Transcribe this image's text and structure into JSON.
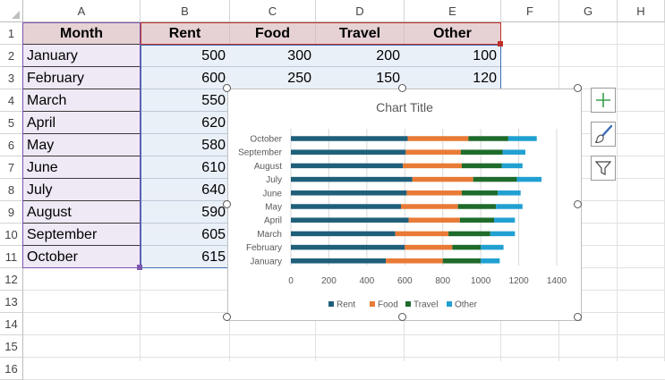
{
  "columns": [
    "A",
    "B",
    "C",
    "D",
    "E",
    "F",
    "G",
    "H"
  ],
  "rows": [
    "1",
    "2",
    "3",
    "4",
    "5",
    "6",
    "7",
    "8",
    "9",
    "10",
    "11",
    "12",
    "13",
    "14",
    "15",
    "16"
  ],
  "table": {
    "headers": [
      "Month",
      "Rent",
      "Food",
      "Travel",
      "Other"
    ],
    "months": [
      "January",
      "February",
      "March",
      "April",
      "May",
      "June",
      "July",
      "August",
      "September",
      "October"
    ],
    "rent": [
      "500",
      "600",
      "550",
      "620",
      "580",
      "610",
      "640",
      "590",
      "605",
      "615"
    ],
    "food": [
      "300",
      "250"
    ],
    "travel": [
      "200",
      "150"
    ],
    "other": [
      "100",
      "120"
    ]
  },
  "chart_data": {
    "type": "bar",
    "orientation": "horizontal",
    "stacked": true,
    "title": "Chart Title",
    "categories": [
      "January",
      "February",
      "March",
      "April",
      "May",
      "June",
      "July",
      "August",
      "September",
      "October"
    ],
    "series": [
      {
        "name": "Rent",
        "color": "#1f5f7a",
        "values": [
          500,
          600,
          550,
          620,
          580,
          610,
          640,
          590,
          605,
          615
        ]
      },
      {
        "name": "Food",
        "color": "#e97a36",
        "values": [
          300,
          250,
          280,
          270,
          300,
          290,
          320,
          310,
          290,
          320
        ]
      },
      {
        "name": "Travel",
        "color": "#1e6b2b",
        "values": [
          200,
          150,
          220,
          180,
          200,
          190,
          230,
          210,
          220,
          210
        ]
      },
      {
        "name": "Other",
        "color": "#21a0d2",
        "values": [
          100,
          120,
          130,
          110,
          140,
          120,
          130,
          110,
          120,
          150
        ]
      }
    ],
    "xlim": [
      0,
      1400
    ],
    "xticks": [
      "0",
      "200",
      "400",
      "600",
      "800",
      "1000",
      "1200",
      "1400"
    ],
    "grid": true,
    "legend": "bottom"
  },
  "chart_tools": {
    "elements_icon": "plus-icon",
    "styles_icon": "brush-icon",
    "filter_icon": "funnel-icon"
  }
}
